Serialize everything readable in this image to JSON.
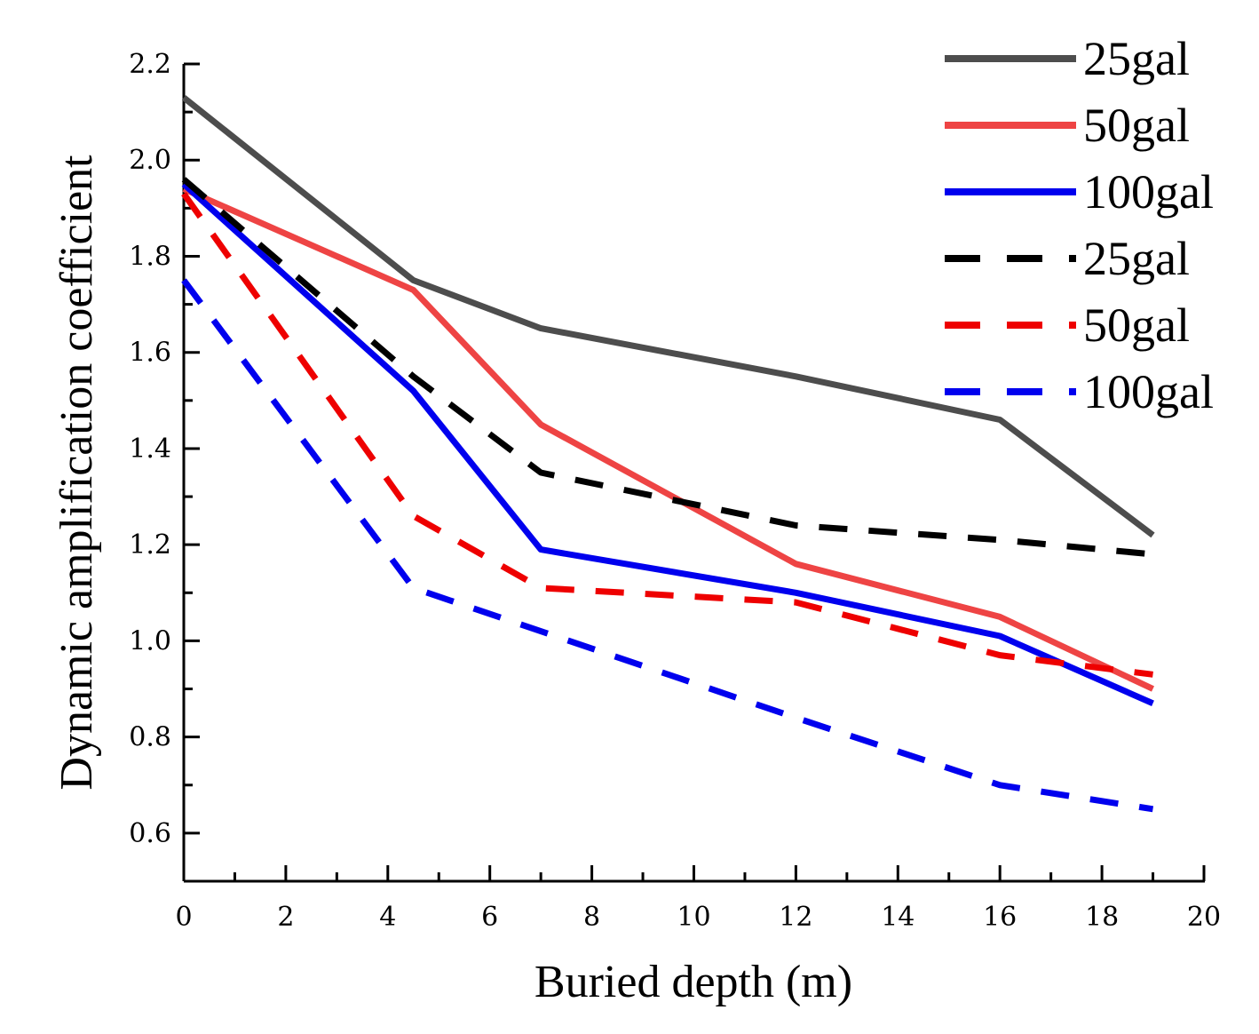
{
  "chart_data": {
    "type": "line",
    "title": "",
    "xlabel": "Buried depth (m)",
    "ylabel": "Dynamic amplification coefficient",
    "xlim": [
      0,
      20
    ],
    "ylim": [
      0.5,
      2.2
    ],
    "xticks": [
      0,
      2,
      4,
      6,
      8,
      10,
      12,
      14,
      16,
      18,
      20
    ],
    "xtick_labels": [
      "0",
      "2",
      "4",
      "6",
      "8",
      "10",
      "12",
      "14",
      "16",
      "18",
      "20"
    ],
    "yticks": [
      0.6,
      0.8,
      1.0,
      1.2,
      1.4,
      1.6,
      1.8,
      2.0,
      2.2
    ],
    "ytick_labels": [
      "0.6",
      "0.8",
      "1.0",
      "1.2",
      "1.4",
      "1.6",
      "1.8",
      "2.0",
      "2.2"
    ],
    "grid": false,
    "legend_position": "top-right",
    "x": [
      0,
      4.5,
      7,
      12,
      16,
      19
    ],
    "series": [
      {
        "name": "25gal",
        "style": "solid",
        "color": "#4d4d4d",
        "values": [
          2.13,
          1.75,
          1.65,
          1.55,
          1.46,
          1.22
        ]
      },
      {
        "name": "50gal",
        "style": "solid",
        "color": "#ee4444",
        "values": [
          1.94,
          1.73,
          1.45,
          1.16,
          1.05,
          0.9
        ]
      },
      {
        "name": "100gal",
        "style": "solid",
        "color": "#0000ee",
        "values": [
          1.95,
          1.52,
          1.19,
          1.1,
          1.01,
          0.87
        ]
      },
      {
        "name": "25gal",
        "style": "dashed",
        "color": "#000000",
        "values": [
          1.96,
          1.55,
          1.35,
          1.24,
          1.21,
          1.18
        ]
      },
      {
        "name": "50gal",
        "style": "dashed",
        "color": "#ee0000",
        "values": [
          1.93,
          1.26,
          1.11,
          1.08,
          0.97,
          0.93
        ]
      },
      {
        "name": "100gal",
        "style": "dashed",
        "color": "#0000ee",
        "values": [
          1.75,
          1.11,
          1.02,
          0.84,
          0.7,
          0.65
        ]
      }
    ]
  }
}
